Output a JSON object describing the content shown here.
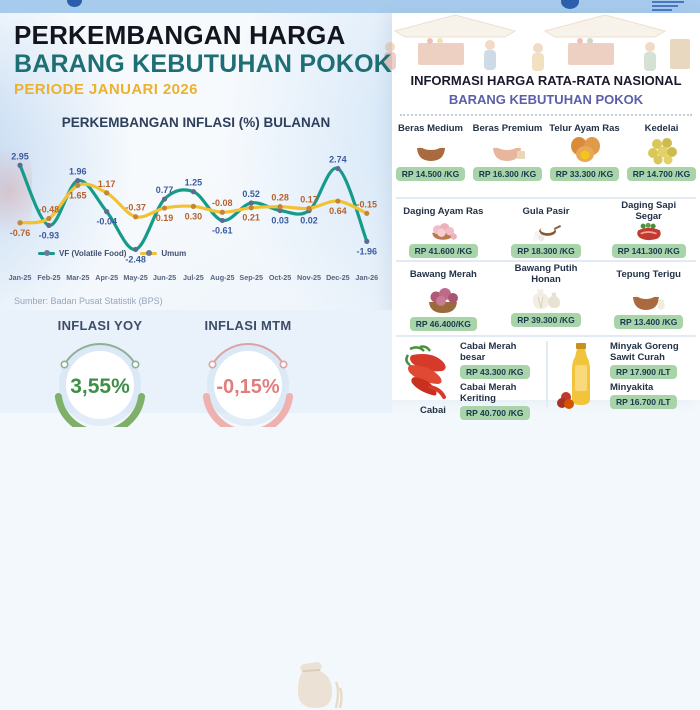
{
  "header": {
    "title_line1": "PERKEMBANGAN HARGA",
    "title_line2": "BARANG KEBUTUHAN POKOK",
    "period": "PERIODE JANUARI 2026"
  },
  "colors": {
    "vf_line": "#169b8b",
    "umum_line": "#f3c232",
    "yoy_green": "#3f8f48",
    "mtm_red": "#e07e7e",
    "price_pill": "#a9d4a9",
    "subtitle_teal": "#1e6f74",
    "period_orange": "#edb02f",
    "panel_subtitle_purple": "#5b5ea9"
  },
  "chart_data": {
    "type": "line",
    "title": "PERKEMBANGAN INFLASI (%) BULANAN",
    "categories": [
      "Jan-25",
      "Feb-25",
      "Mar-25",
      "Apr-25",
      "May-25",
      "Jun-25",
      "Jul-25",
      "Aug-25",
      "Sep-25",
      "Oct-25",
      "Nov-25",
      "Dec-25",
      "Jan-26"
    ],
    "series": [
      {
        "name": "VF (Volatile Food)",
        "color": "#169b8b",
        "marker": "#5b6d8f",
        "label_color": "#3a5ba0",
        "values": [
          2.95,
          -0.93,
          1.96,
          -0.04,
          -2.48,
          0.77,
          1.25,
          -0.61,
          0.52,
          0.03,
          0.02,
          2.74,
          -1.96
        ]
      },
      {
        "name": "Umum",
        "color": "#f3c232",
        "marker": "#c28636",
        "label_color": "#b5622f",
        "values": [
          -0.76,
          -0.48,
          1.65,
          1.17,
          -0.37,
          0.19,
          0.3,
          -0.08,
          0.21,
          0.28,
          0.17,
          0.64,
          -0.15
        ]
      }
    ],
    "ylim": [
      -3,
      3.5
    ],
    "grid": false,
    "legend_position": "bottom-left",
    "source": "Sumber: Badan Pusat Statistik (BPS)"
  },
  "gauges": [
    {
      "label": "INFLASI YOY",
      "value": "3,55%",
      "value_color": "#3f8f48",
      "arc_color": "#7fb069"
    },
    {
      "label": "INFLASI MTM",
      "value": "-0,15%",
      "value_color": "#e07e7e",
      "arc_color": "#efb0b0"
    }
  ],
  "price_panel": {
    "title": "INFORMASI HARGA RATA-RATA NASIONAL",
    "subtitle": "BARANG KEBUTUHAN POKOK",
    "rows": [
      {
        "items": [
          {
            "name": "Beras Medium",
            "price": "RP 14.500 /KG",
            "icon": "rice-bowl"
          },
          {
            "name": "Beras Premium",
            "price": "RP 16.300 /KG",
            "icon": "rice-bowl-premium"
          },
          {
            "name": "Telur Ayam Ras",
            "price": "RP 33.300 /KG",
            "icon": "eggs"
          },
          {
            "name": "Kedelai",
            "price": "RP 14.700 /KG",
            "icon": "soybeans"
          }
        ]
      },
      {
        "items": [
          {
            "name": "Daging Ayam Ras",
            "price": "RP 41.600 /KG",
            "icon": "chicken-meat"
          },
          {
            "name": "Gula Pasir",
            "price": "RP 18.300 /KG",
            "icon": "sugar"
          },
          {
            "name": "Daging Sapi Segar",
            "price": "RP 141.300 /KG",
            "icon": "beef"
          }
        ]
      },
      {
        "items": [
          {
            "name": "Bawang Merah",
            "price": "RP 46.400/KG",
            "icon": "shallots"
          },
          {
            "name": "Bawang Putih Honan",
            "price": "RP 39.300 /KG",
            "icon": "garlic"
          },
          {
            "name": "Tepung Terigu",
            "price": "RP 13.400 /KG",
            "icon": "flour-bowl"
          }
        ]
      }
    ],
    "bottom_row": {
      "left": {
        "image": "chili",
        "items": [
          {
            "name": "Cabai Merah besar",
            "price": "RP 43.300 /KG"
          },
          {
            "name": "Cabai Merah Keriting",
            "price": "RP 40.700 /KG"
          }
        ],
        "cutoff_label": "Cabai"
      },
      "right": {
        "image": "oil-bottle",
        "items": [
          {
            "name": "Minyak Goreng Sawit Curah",
            "price": "RP 17.900 /LT"
          },
          {
            "name": "Minyakita",
            "price": "RP 16.700 /LT"
          }
        ]
      }
    }
  }
}
